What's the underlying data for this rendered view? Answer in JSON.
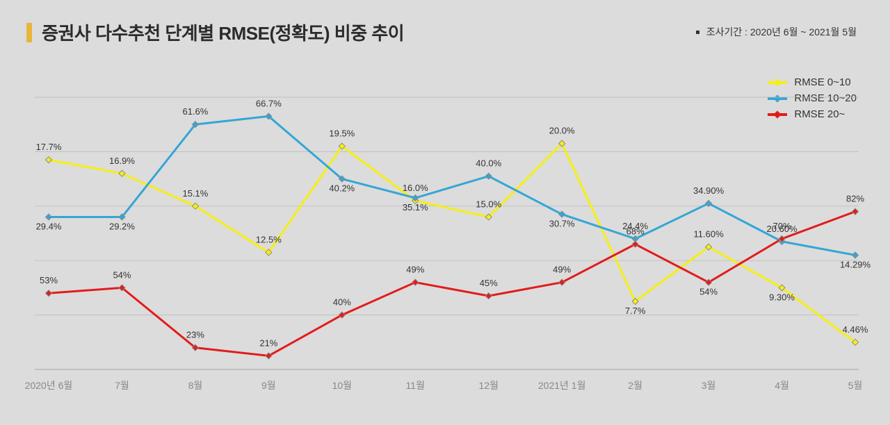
{
  "title": "증권사 다수추천 단계별 RMSE(정확도) 비중 추이",
  "period_label": "조사기간 : 2020년 6월 ~ 2021월 5월",
  "background_color": "#dcdcdc",
  "title_bar_color": "#e8b43a",
  "title_fontsize_pt": 26,
  "chart": {
    "type": "line",
    "categories": [
      "2020년 6월",
      "7월",
      "8월",
      "9월",
      "10월",
      "11월",
      "12월",
      "2021년 1월",
      "2월",
      "3월",
      "4월",
      "5월"
    ],
    "ylim": [
      0,
      100
    ],
    "gridlines_y": [
      0,
      20,
      40,
      60,
      80,
      100
    ],
    "grid_color": "#b5b5b5",
    "xaxis_label_color": "#888888",
    "datalabel_color": "#333333",
    "datalabel_fontsize_pt": 13,
    "line_width": 3,
    "marker": "diamond",
    "marker_size": 9,
    "marker_border_color": "#8a8a8a",
    "series": [
      {
        "name": "RMSE 0~10",
        "color": "#f5ef14",
        "values": [
          17.7,
          16.9,
          15.1,
          12.5,
          19.5,
          16.0,
          15.0,
          20.0,
          7.7,
          11.6,
          9.3,
          4.46
        ],
        "labels": [
          "17.7%",
          "16.9%",
          "15.1%",
          "12.5%",
          "19.5%",
          "16.0%",
          "15.0%",
          "20.0%",
          "7.7%",
          "11.60%",
          "9.30%",
          "4.46%"
        ],
        "display_y": [
          77,
          72,
          60,
          43,
          82,
          62,
          56,
          83,
          25,
          45,
          30,
          10
        ],
        "label_dy": [
          -14,
          -14,
          -14,
          -14,
          -14,
          -14,
          -14,
          -14,
          18,
          -14,
          18,
          -14
        ]
      },
      {
        "name": "RMSE 10~20",
        "color": "#34a6d6",
        "values": [
          29.4,
          29.2,
          61.6,
          66.7,
          40.2,
          35.1,
          40.0,
          30.7,
          24.4,
          34.9,
          20.6,
          14.29
        ],
        "labels": [
          "29.4%",
          "29.2%",
          "61.6%",
          "66.7%",
          "40.2%",
          "35.1%",
          "40.0%",
          "30.7%",
          "24.4%",
          "34.90%",
          "20.60%",
          "14.29%"
        ],
        "display_y": [
          56,
          56,
          90,
          93,
          70,
          63,
          71,
          57,
          48,
          61,
          47,
          42
        ],
        "label_dy": [
          18,
          18,
          -14,
          -14,
          18,
          18,
          -14,
          18,
          -14,
          -14,
          -14,
          18
        ]
      },
      {
        "name": "RMSE 20~",
        "color": "#e31b1b",
        "values": [
          53,
          54,
          23,
          21,
          40,
          49,
          45,
          49,
          68,
          54,
          70,
          82
        ],
        "labels": [
          "53%",
          "54%",
          "23%",
          "21%",
          "40%",
          "49%",
          "45%",
          "49%",
          "68%",
          "54%",
          "70%",
          "82%"
        ],
        "display_y": [
          28,
          30,
          8,
          5,
          20,
          32,
          27,
          32,
          46,
          32,
          48,
          58
        ],
        "label_dy": [
          -14,
          -14,
          -14,
          -14,
          -14,
          -14,
          -14,
          -14,
          -14,
          18,
          -14,
          -14
        ]
      }
    ],
    "legend": {
      "position": "top-right",
      "items": [
        {
          "label": "RMSE 0~10",
          "color": "#f5ef14"
        },
        {
          "label": "RMSE 10~20",
          "color": "#34a6d6"
        },
        {
          "label": "RMSE 20~",
          "color": "#e31b1b"
        }
      ]
    }
  }
}
